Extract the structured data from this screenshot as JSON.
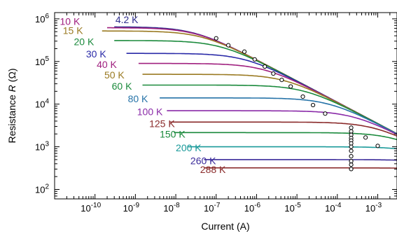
{
  "chart_data": {
    "type": "line",
    "title": "",
    "xlabel": "Current (A)",
    "ylabel_prefix": "Resistance ",
    "ylabel_symbol": "R",
    "ylabel_unit": " (Ω)",
    "x_scale": "log",
    "y_scale": "log",
    "xlim": [
      1e-11,
      0.003
    ],
    "ylim": [
      60,
      1400000.0
    ],
    "x_ticks": [
      {
        "value": 1e-10,
        "base": "10",
        "exp": "-10"
      },
      {
        "value": 1e-09,
        "base": "10",
        "exp": "-9"
      },
      {
        "value": 1e-08,
        "base": "10",
        "exp": "-8"
      },
      {
        "value": 1e-07,
        "base": "10",
        "exp": "-7"
      },
      {
        "value": 1e-06,
        "base": "10",
        "exp": "-6"
      },
      {
        "value": 1e-05,
        "base": "10",
        "exp": "-5"
      },
      {
        "value": 0.0001,
        "base": "10",
        "exp": "-4"
      },
      {
        "value": 0.001,
        "base": "10",
        "exp": "-3"
      }
    ],
    "y_ticks": [
      {
        "value": 100.0,
        "base": "10",
        "exp": "2"
      },
      {
        "value": 1000.0,
        "base": "10",
        "exp": "3"
      },
      {
        "value": 10000.0,
        "base": "10",
        "exp": "4"
      },
      {
        "value": 100000.0,
        "base": "10",
        "exp": "5"
      },
      {
        "value": 1000000.0,
        "base": "10",
        "exp": "6"
      }
    ],
    "grid": false,
    "legend": "inline labels at curve starts",
    "series": [
      {
        "name": "4.2 K",
        "color": "#2e2e8e",
        "plateau": 650000,
        "x_start": 3e-10,
        "label_x": 3.2e-10,
        "label_y": 800000
      },
      {
        "name": "10 K",
        "color": "#a0207f",
        "plateau": 620000,
        "x_start": 2e-10,
        "label_x": 1.35e-11,
        "label_y": 720000
      },
      {
        "name": "15 K",
        "color": "#9a7a22",
        "plateau": 520000,
        "x_start": 1.5e-10,
        "label_x": 1.6e-11,
        "label_y": 440000
      },
      {
        "name": "20 K",
        "color": "#1b8a3c",
        "plateau": 310000,
        "x_start": 3e-10,
        "label_x": 3e-11,
        "label_y": 240000
      },
      {
        "name": "30 K",
        "color": "#2a2aa8",
        "plateau": 155000,
        "x_start": 6e-10,
        "label_x": 6e-11,
        "label_y": 125000
      },
      {
        "name": "40 K",
        "color": "#a0207f",
        "plateau": 90000,
        "x_start": 1.2e-09,
        "label_x": 1.1e-10,
        "label_y": 70000
      },
      {
        "name": "50 K",
        "color": "#9a7a22",
        "plateau": 50000,
        "x_start": 1.5e-09,
        "label_x": 1.7e-10,
        "label_y": 40000
      },
      {
        "name": "60 K",
        "color": "#1b8a3c",
        "plateau": 28000,
        "x_start": 1.5e-09,
        "label_x": 2.6e-10,
        "label_y": 22000
      },
      {
        "name": "80 K",
        "color": "#2673a8",
        "plateau": 14000,
        "x_start": 4e-09,
        "label_x": 6.5e-10,
        "label_y": 11000
      },
      {
        "name": "100 K",
        "color": "#8a2aa8",
        "plateau": 7000,
        "x_start": 6e-09,
        "label_x": 1.1e-09,
        "label_y": 5500
      },
      {
        "name": "125 K",
        "color": "#8a2a2a",
        "plateau": 3800,
        "x_start": 7e-09,
        "label_x": 2.2e-09,
        "label_y": 2900
      },
      {
        "name": "150 K",
        "color": "#1b8a3c",
        "plateau": 2150,
        "x_start": 9e-09,
        "label_x": 4e-09,
        "label_y": 1650
      },
      {
        "name": "200 K",
        "color": "#1a9a9a",
        "plateau": 1000,
        "x_start": 2e-08,
        "label_x": 1e-08,
        "label_y": 780
      },
      {
        "name": "260 K",
        "color": "#3a2a9a",
        "plateau": 500,
        "x_start": 5e-08,
        "label_x": 2.3e-08,
        "label_y": 390
      },
      {
        "name": "288 K",
        "color": "#8a2a2a",
        "plateau": 320,
        "x_start": 5e-08,
        "label_x": 4e-08,
        "label_y": 245
      }
    ],
    "envelope_points": [
      [
        1e-07,
        350000
      ],
      [
        2e-07,
        240000
      ],
      [
        5e-07,
        170000
      ],
      [
        9e-07,
        112000
      ],
      [
        1.6e-06,
        76000
      ],
      [
        2.6e-06,
        52000
      ],
      [
        4.2e-06,
        37000
      ],
      [
        7e-06,
        26000
      ],
      [
        1.4e-05,
        15000
      ],
      [
        2.5e-05,
        9500
      ],
      [
        5e-05,
        6000
      ],
      [
        0.00022,
        2800
      ],
      [
        0.0005,
        1650
      ],
      [
        0.001,
        1050
      ]
    ],
    "column_points": [
      [
        0.00022,
        2300
      ],
      [
        0.00022,
        1900
      ],
      [
        0.00022,
        1600
      ],
      [
        0.00022,
        1400
      ],
      [
        0.00022,
        1200
      ],
      [
        0.00022,
        1000
      ],
      [
        0.00022,
        800
      ],
      [
        0.00022,
        600
      ],
      [
        0.00022,
        460
      ],
      [
        0.00022,
        380
      ],
      [
        0.00022,
        300
      ]
    ]
  }
}
